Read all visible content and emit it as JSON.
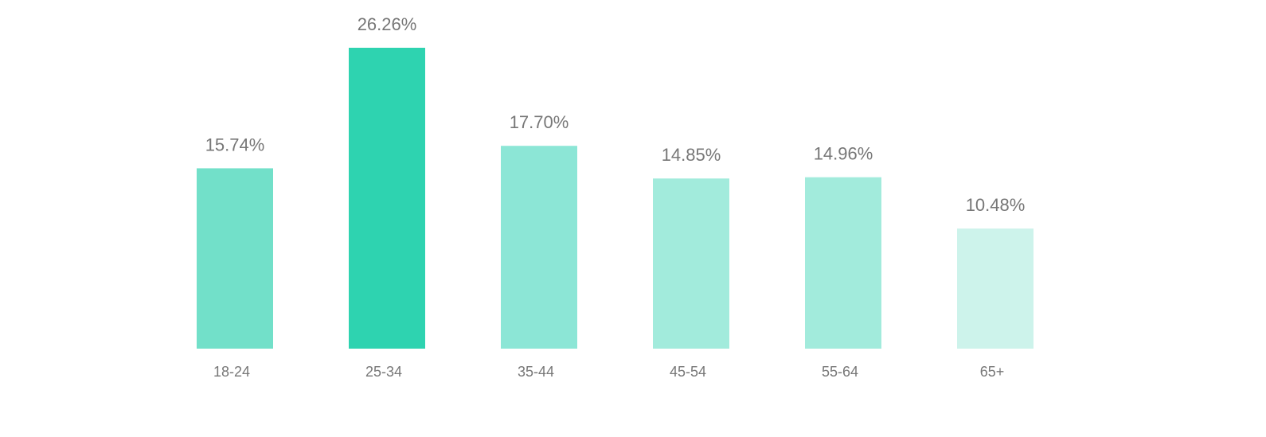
{
  "chart_data": {
    "type": "bar",
    "categories": [
      "18-24",
      "25-34",
      "35-44",
      "45-54",
      "55-64",
      "65+"
    ],
    "values": [
      15.74,
      26.26,
      17.7,
      14.85,
      14.96,
      10.48
    ],
    "value_labels": [
      "15.74%",
      "26.26%",
      "17.70%",
      "14.85%",
      "14.96%",
      "10.48%"
    ],
    "colors": [
      "#72e0c9",
      "#2ed3b0",
      "#8ce6d6",
      "#a2ebdc",
      "#a2ebdc",
      "#cdf3eb"
    ]
  }
}
